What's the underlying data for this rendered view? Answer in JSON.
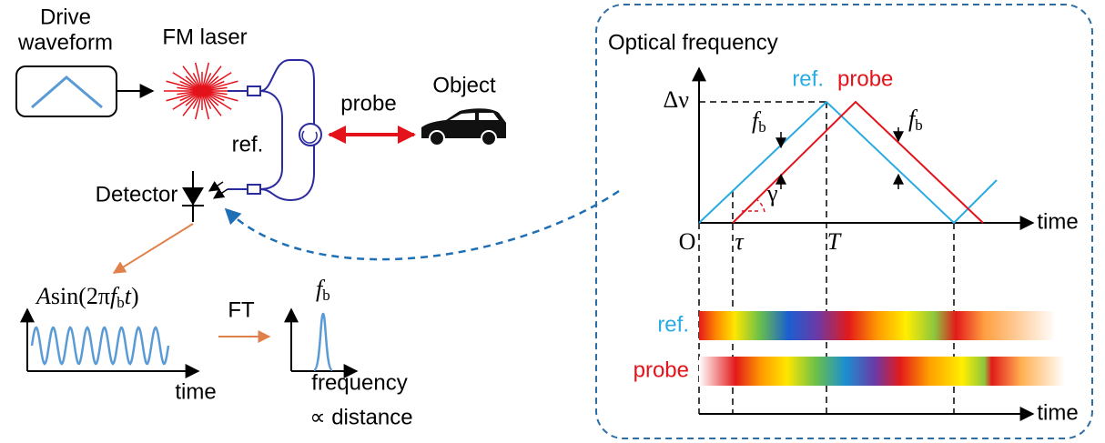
{
  "setup": {
    "drive_waveform": [
      "Drive",
      "waveform"
    ],
    "fm_laser": "FM laser",
    "probe": "probe",
    "object": "Object",
    "ref": "ref.",
    "detector": "Detector"
  },
  "signal": {
    "formula": [
      "A",
      "sin(2π",
      "f",
      "b",
      "t",
      ")"
    ],
    "ft": "FT",
    "peak_label": [
      "f",
      "b"
    ],
    "time_axis": "time",
    "frequency_axis": [
      "frequency",
      "∝ distance"
    ]
  },
  "inset": {
    "title": "Optical frequency",
    "legend_ref": "ref.",
    "legend_probe": "probe",
    "delta_nu": "Δν",
    "fb_left": [
      "f",
      "b"
    ],
    "fb_right": [
      "f",
      "b"
    ],
    "gamma": "γ",
    "origin": "O",
    "tau": "τ",
    "period": "T",
    "time_axis": "time",
    "bar_ref": "ref.",
    "bar_probe": "probe",
    "bar_time_axis": "time"
  }
}
